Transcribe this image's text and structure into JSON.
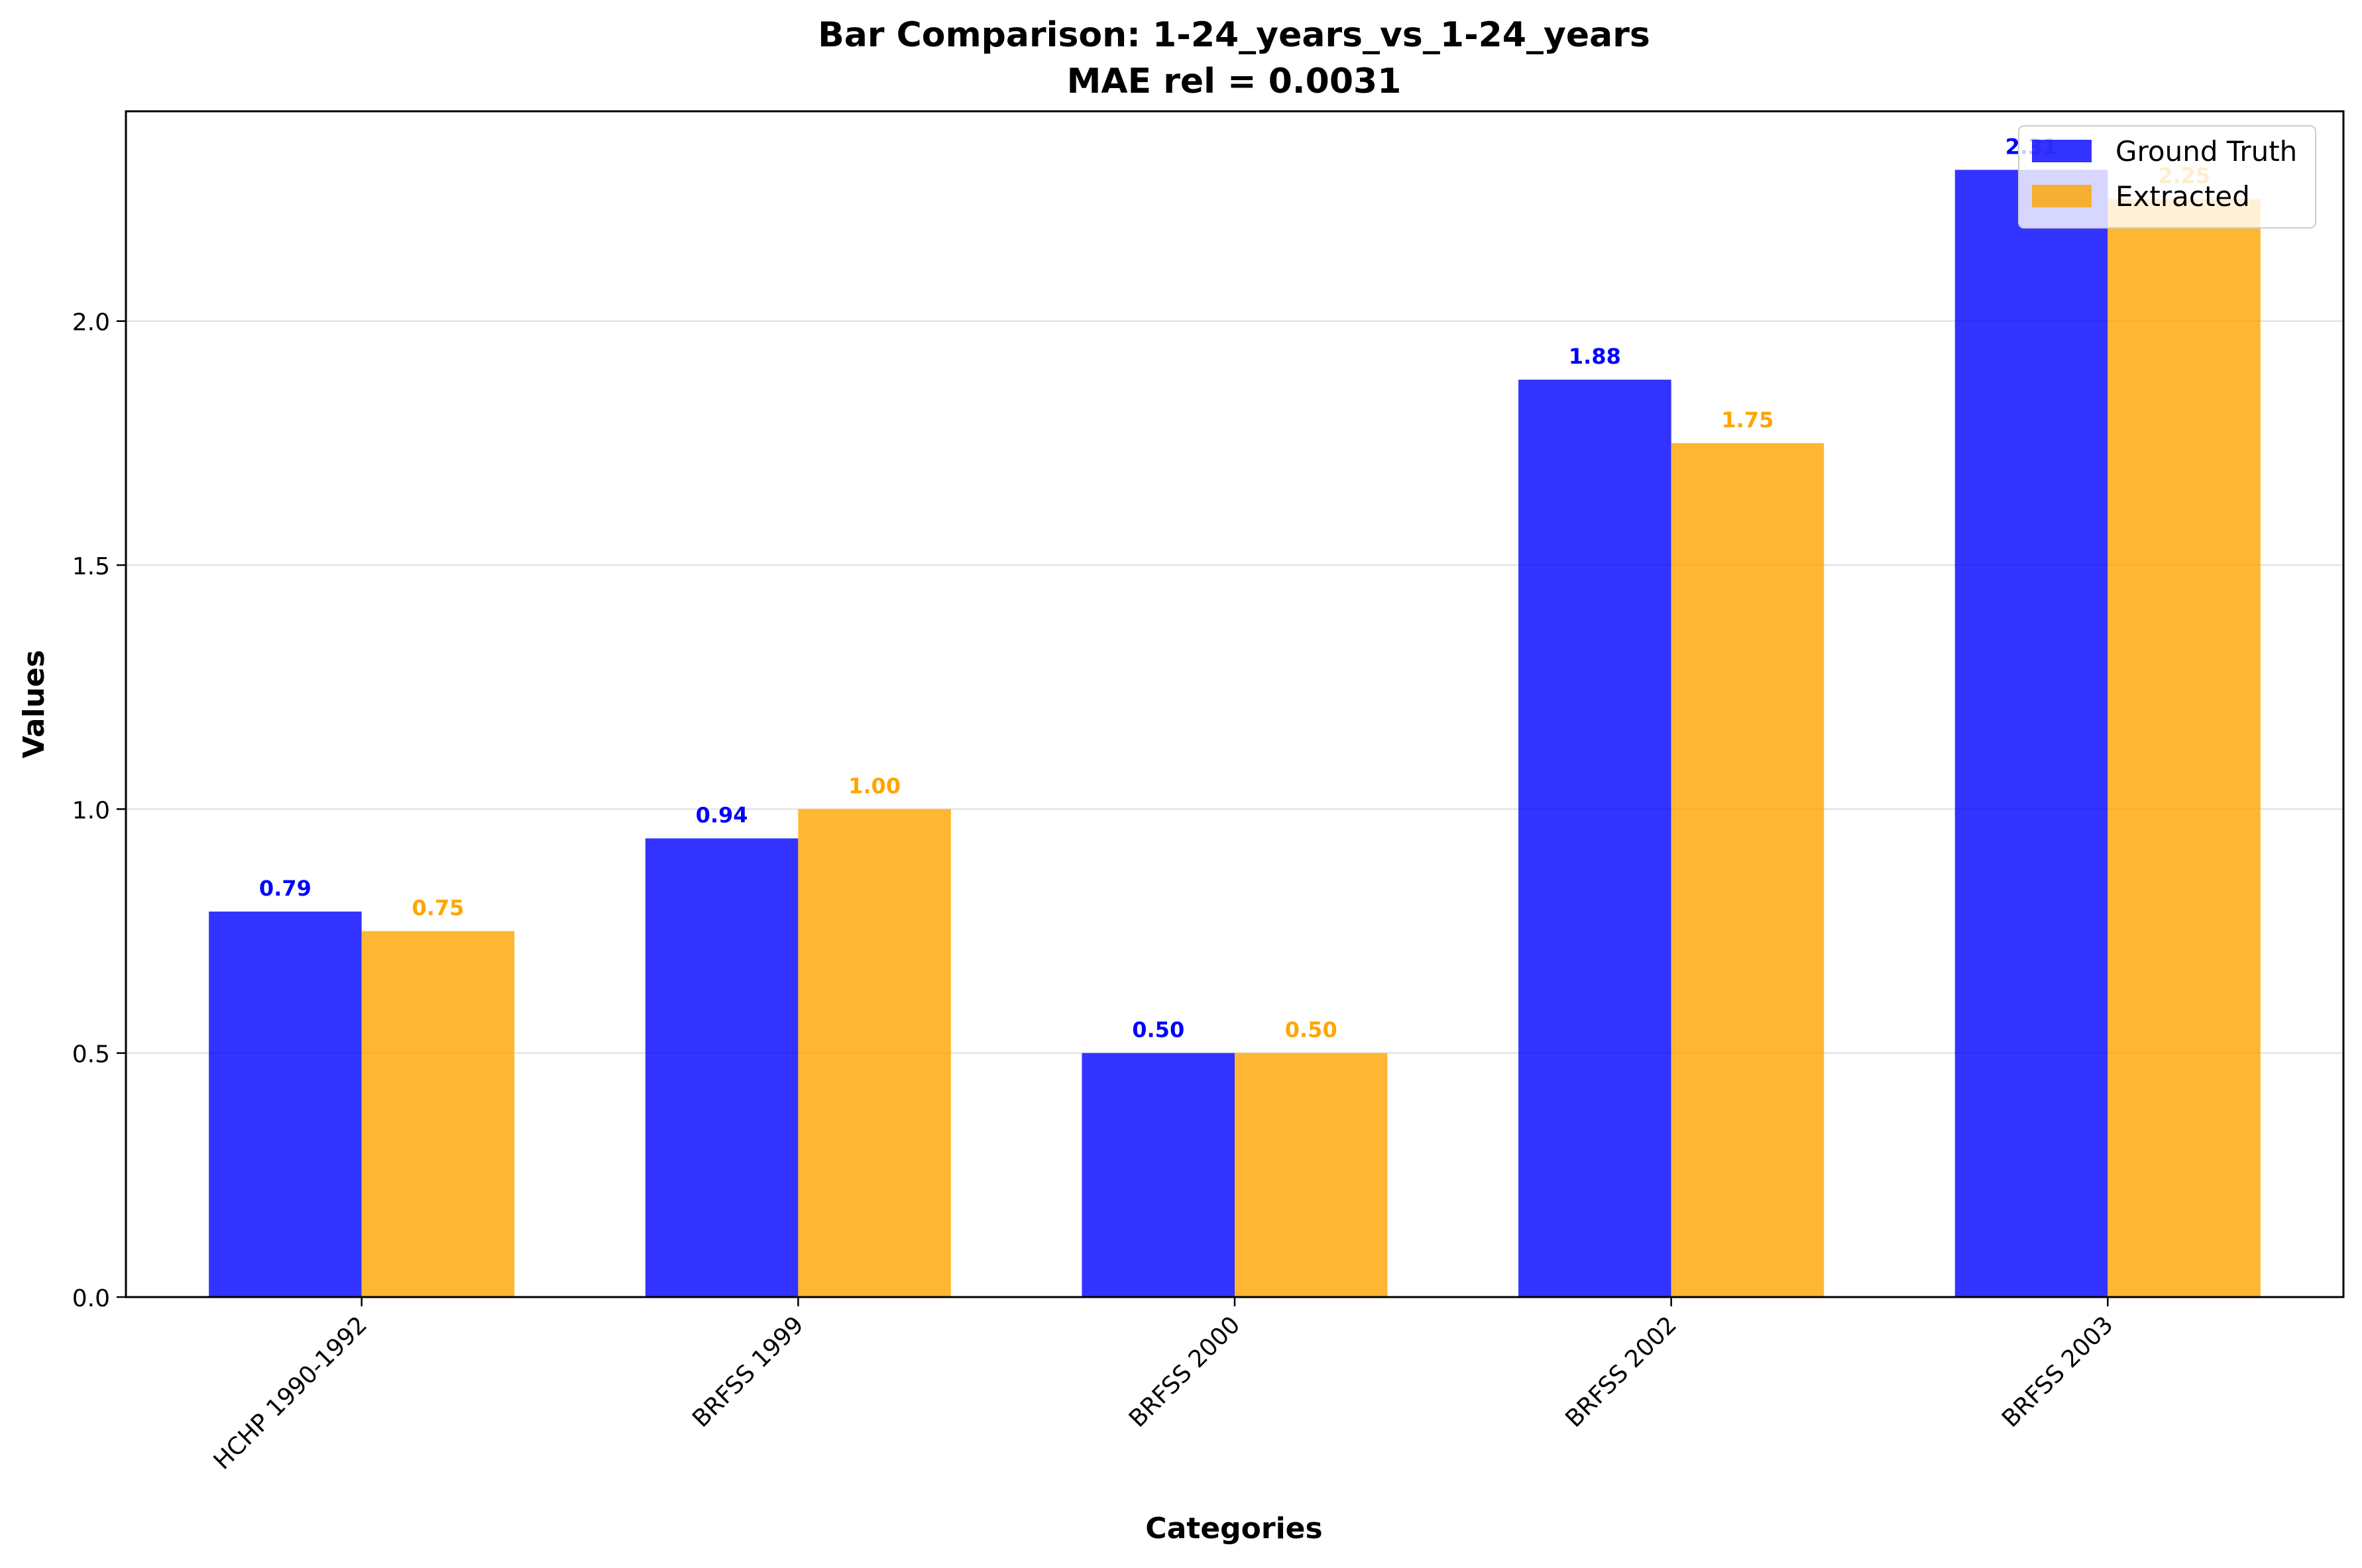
{
  "chart_data": {
    "type": "bar",
    "title": "Bar Comparison: 1-24_years_vs_1-24_years",
    "subtitle": "MAE rel = 0.0031",
    "xlabel": "Categories",
    "ylabel": "Values",
    "categories": [
      "HCHP 1990-1992",
      "BRFSS 1999",
      "BRFSS 2000",
      "BRFSS 2002",
      "BRFSS 2003"
    ],
    "series": [
      {
        "name": "Ground Truth",
        "color": "#0000ff",
        "values": [
          0.79,
          0.94,
          0.5,
          1.88,
          2.31
        ],
        "labels": [
          "0.79",
          "0.94",
          "0.50",
          "1.88",
          "2.31"
        ]
      },
      {
        "name": "Extracted",
        "color": "#ffa500",
        "values": [
          0.75,
          1.0,
          0.5,
          1.75,
          2.25
        ],
        "labels": [
          "0.75",
          "1.00",
          "0.50",
          "1.75",
          "2.25"
        ]
      }
    ],
    "ylim": [
      0,
      2.43
    ],
    "yticks": [
      0.0,
      0.5,
      1.0,
      1.5,
      2.0
    ],
    "ytick_labels": [
      "0.0",
      "0.5",
      "1.0",
      "1.5",
      "2.0"
    ],
    "grid": "horizontal",
    "legend_position": "top-right"
  }
}
